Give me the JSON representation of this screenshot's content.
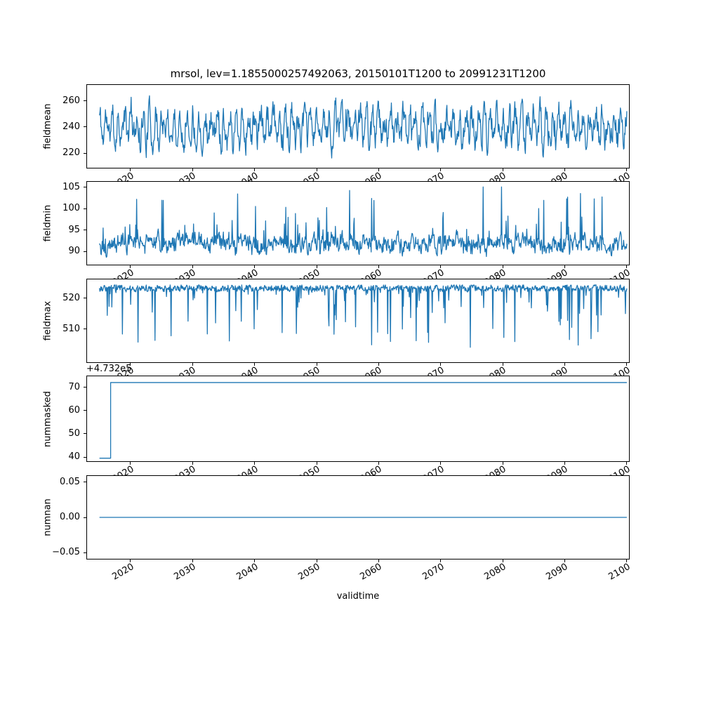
{
  "title": "mrsol, lev=1.1855000257492063, 20150101T1200 to 20991231T1200",
  "xlabel": "validtime",
  "style": {
    "line_color": "#1f77b4",
    "axis_color": "#000000",
    "background": "#ffffff"
  },
  "x_axis": {
    "ticks": [
      2020,
      2030,
      2040,
      2050,
      2060,
      2070,
      2080,
      2090,
      2100
    ],
    "tick_labels": [
      "2020",
      "2030",
      "2040",
      "2050",
      "2060",
      "2070",
      "2080",
      "2090",
      "2100"
    ],
    "lim": [
      2013.0,
      2100.35
    ],
    "data_range": [
      2015.0,
      2100.0
    ]
  },
  "chart_data": [
    {
      "type": "line",
      "name": "fieldmean",
      "ylabel": "fieldmean",
      "yticks": [
        220,
        240,
        260
      ],
      "ytick_labels": [
        "220",
        "240",
        "260"
      ],
      "ylim": [
        208.9,
        272.1
      ],
      "observed_range": [
        211,
        271
      ],
      "series": {
        "kind": "noisy",
        "points": 1150,
        "seed": 11,
        "base": 240,
        "phi": 0.55,
        "noise": 9.5,
        "seasonal_amp": 9,
        "seasonal_phase": 1.3,
        "spike_chance": 0.004,
        "spike_amp": 14,
        "spike_dir": 1,
        "clamp": [
          210.5,
          271.0
        ]
      }
    },
    {
      "type": "line",
      "name": "fieldmin",
      "ylabel": "fieldmin",
      "yticks": [
        90,
        95,
        100,
        105
      ],
      "ytick_labels": [
        "90",
        "95",
        "100",
        "105"
      ],
      "ylim": [
        86.9,
        106.3
      ],
      "observed_range": [
        88.4,
        105.0
      ],
      "series": {
        "kind": "spiky",
        "points": 1150,
        "seed": 22,
        "base": 91.2,
        "phi": 0.6,
        "base_noise": 1.6,
        "jitter": 1.2,
        "spike_chance": 0.07,
        "spike_min": 2.0,
        "spike_max": 13.5,
        "spike_dir": 1,
        "clamp": [
          88.3,
          105.1
        ]
      }
    },
    {
      "type": "line",
      "name": "fieldmax",
      "ylabel": "fieldmax",
      "yticks": [
        510,
        520
      ],
      "ytick_labels": [
        "510",
        "520"
      ],
      "ylim": [
        499.3,
        526.0
      ],
      "observed_range": [
        503.5,
        524.2
      ],
      "series": {
        "kind": "spiky",
        "points": 1150,
        "seed": 33,
        "base": 523.4,
        "phi": 0.3,
        "base_noise": 0.9,
        "jitter": 0.5,
        "spike_chance": 0.1,
        "spike_min": 1.5,
        "spike_max": 19.5,
        "spike_dir": -1,
        "clamp": [
          503.3,
          524.2
        ]
      }
    },
    {
      "type": "line",
      "name": "nummasked",
      "ylabel": "nummasked",
      "offset_text": "+4.732e5",
      "yticks": [
        40,
        50,
        60,
        70
      ],
      "ytick_labels": [
        "40",
        "50",
        "60",
        "70"
      ],
      "ylim": [
        38.2,
        74.7
      ],
      "series": {
        "kind": "step",
        "segments": [
          {
            "from": 2015.0,
            "to": 2016.8,
            "value": 39.5
          },
          {
            "from": 2016.8,
            "to": 2100.0,
            "value": 72.0
          }
        ],
        "offset": 473200,
        "absolute_levels": [
          473239.5,
          473272.0
        ]
      }
    },
    {
      "type": "line",
      "name": "numnan",
      "ylabel": "numnan",
      "yticks": [
        -0.05,
        0.0,
        0.05
      ],
      "ytick_labels": [
        "−0.05",
        "0.00",
        "0.05"
      ],
      "ylim": [
        -0.0588,
        0.0588
      ],
      "series": {
        "kind": "constant",
        "value": 0.0
      }
    }
  ]
}
